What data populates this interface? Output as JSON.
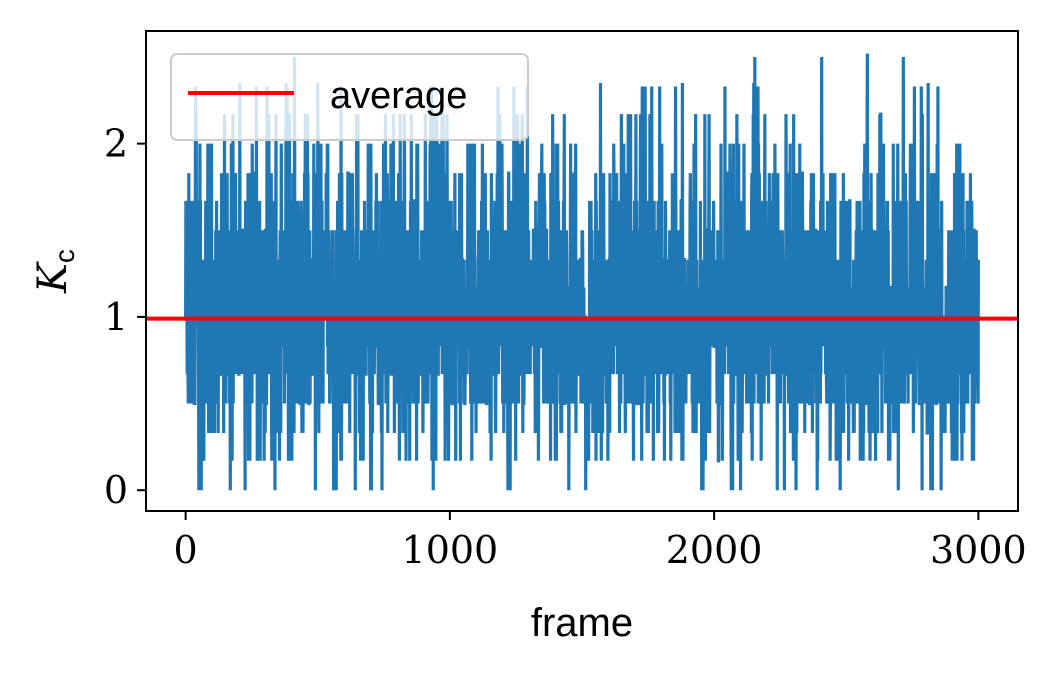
{
  "chart_data": {
    "type": "line",
    "title": "",
    "xlabel": "frame",
    "ylabel": "K",
    "ylabel_subscript": "c",
    "xlim": [
      -150,
      3150
    ],
    "ylim": [
      -0.12,
      2.65
    ],
    "x_ticks": [
      0,
      1000,
      2000,
      3000
    ],
    "x_tick_labels": [
      "0",
      "1000",
      "2000",
      "3000"
    ],
    "y_ticks": [
      0,
      1,
      2
    ],
    "y_tick_labels": [
      "0",
      "1",
      "2"
    ],
    "grid": false,
    "legend": {
      "placement": "top-left",
      "entries": [
        {
          "label": "average",
          "color": "#ff0000"
        }
      ]
    },
    "series": [
      {
        "color": "#1f77b4",
        "description_points": 3001,
        "x_start": 0,
        "x_end": 3000,
        "levels": [
          0,
          0.17,
          0.33,
          0.5,
          0.67,
          0.83,
          1.0,
          1.17,
          1.33,
          1.5,
          1.67,
          1.83,
          2.0,
          2.17,
          2.33,
          2.5
        ],
        "mean": 0.99,
        "min": 0,
        "max": 2.52,
        "peaks": [
          [
            40,
            2.17
          ],
          [
            205,
            2.35
          ],
          [
            380,
            2.35
          ],
          [
            500,
            2.35
          ],
          [
            1570,
            2.35
          ],
          [
            1880,
            2.35
          ],
          [
            2150,
            2.35
          ],
          [
            2580,
            2.52
          ],
          [
            2810,
            2.35
          ]
        ],
        "troughs": [
          [
            50,
            0
          ],
          [
            700,
            0
          ],
          [
            1220,
            0
          ],
          [
            2100,
            0
          ],
          [
            2390,
            0
          ],
          [
            2820,
            0
          ]
        ]
      },
      {
        "name": "average",
        "color": "#ff0000",
        "y": 0.99
      }
    ]
  }
}
